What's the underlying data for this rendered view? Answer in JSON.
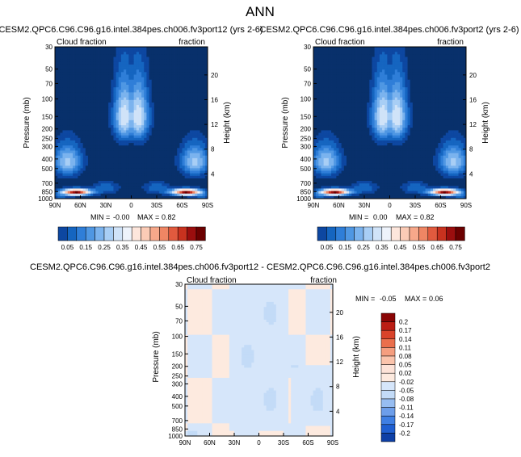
{
  "title": "ANN",
  "colors": {
    "seq": [
      "#08306b",
      "#0d47a1",
      "#1565c0",
      "#2f7ed8",
      "#4f97e3",
      "#7bb3ee",
      "#a8cef5",
      "#d0e3f8",
      "#eef3fb",
      "#fde6dc",
      "#fbcbb6",
      "#f7a88a",
      "#ef8664",
      "#e15a3e",
      "#c8321f",
      "#9b0e0e",
      "#6b0000"
    ],
    "diff": [
      "#08306b",
      "#0d3fa6",
      "#1f5fd1",
      "#3f7fe3",
      "#6d9eea",
      "#97bdf1",
      "#c3dbf7",
      "#e5effb",
      "#fde3d8",
      "#fbc4ac",
      "#f59e7f",
      "#ea6f4c",
      "#d9432a",
      "#bb1d14",
      "#8a0505"
    ]
  },
  "chart_data": [
    {
      "type": "heatmap",
      "name": "panel-1",
      "title": "CESM2.QPC6.C96.C96.g16.intel.384pes.ch006.fv3port12 (yrs 2-6)",
      "left_label": "Cloud fraction",
      "right_label": "fraction",
      "ylabel": "Pressure (mb)",
      "y2label": "Height (km)",
      "xticks": [
        "90N",
        "60N",
        "30N",
        "0",
        "30S",
        "60S",
        "90S"
      ],
      "yticks": [
        "1000",
        "850",
        "700",
        "500",
        "400",
        "300",
        "250",
        "200",
        "150",
        "100",
        "70",
        "50",
        "30"
      ],
      "y2ticks": [
        "4",
        "8",
        "12",
        "16",
        "20"
      ],
      "min_label": "MIN =",
      "min_value": "-0.00",
      "max_label": "MAX =",
      "max_value": "0.82",
      "vmin": 0.0,
      "vmax": 0.82,
      "field": "cloud_fraction"
    },
    {
      "type": "heatmap",
      "name": "panel-2",
      "title": "CESM2.QPC6.C96.C96.g16.intel.384pes.ch006.fv3port2 (yrs 2-6)",
      "left_label": "Cloud fraction",
      "right_label": "fraction",
      "ylabel": "Pressure (mb)",
      "y2label": "Height (km)",
      "xticks": [
        "90N",
        "60N",
        "30N",
        "0",
        "30S",
        "60S",
        "90S"
      ],
      "yticks": [
        "1000",
        "850",
        "700",
        "500",
        "400",
        "300",
        "250",
        "200",
        "150",
        "100",
        "70",
        "50",
        "30"
      ],
      "y2ticks": [
        "4",
        "8",
        "12",
        "16",
        "20"
      ],
      "min_label": "MIN =",
      "min_value": "0.00",
      "max_label": "MAX =",
      "max_value": "0.82",
      "vmin": 0.0,
      "vmax": 0.82,
      "field": "cloud_fraction"
    },
    {
      "type": "heatmap",
      "name": "panel-diff",
      "title": "CESM2.QPC6.C96.C96.g16.intel.384pes.ch006.fv3port12 - CESM2.QPC6.C96.C96.g16.intel.384pes.ch006.fv3port2",
      "left_label": "Cloud fraction",
      "right_label": "fraction",
      "ylabel": "Pressure (mb)",
      "y2label": "Height (km)",
      "xticks": [
        "90N",
        "60N",
        "30N",
        "0",
        "30S",
        "60S",
        "90S"
      ],
      "yticks": [
        "1000",
        "850",
        "700",
        "500",
        "400",
        "300",
        "250",
        "200",
        "150",
        "100",
        "70",
        "50",
        "30"
      ],
      "y2ticks": [
        "4",
        "8",
        "12",
        "16",
        "20"
      ],
      "min_label": "MIN =",
      "min_value": "-0.05",
      "max_label": "MAX =",
      "max_value": "0.06",
      "vmin": -0.05,
      "vmax": 0.06,
      "field": "difference"
    }
  ],
  "colorbar_seq": {
    "labels": [
      "0.05",
      "0.15",
      "0.25",
      "0.35",
      "0.45",
      "0.55",
      "0.65",
      "0.75"
    ],
    "levels": [
      0.05,
      0.1,
      0.15,
      0.2,
      0.25,
      0.3,
      0.35,
      0.4,
      0.45,
      0.5,
      0.55,
      0.6,
      0.65,
      0.7,
      0.75,
      0.8
    ]
  },
  "colorbar_diff": {
    "labels": [
      "0.2",
      "0.17",
      "0.14",
      "0.11",
      "0.08",
      "0.05",
      "0.02",
      "-0.02",
      "-0.05",
      "-0.08",
      "-0.11",
      "-0.14",
      "-0.17",
      "-0.2"
    ]
  }
}
